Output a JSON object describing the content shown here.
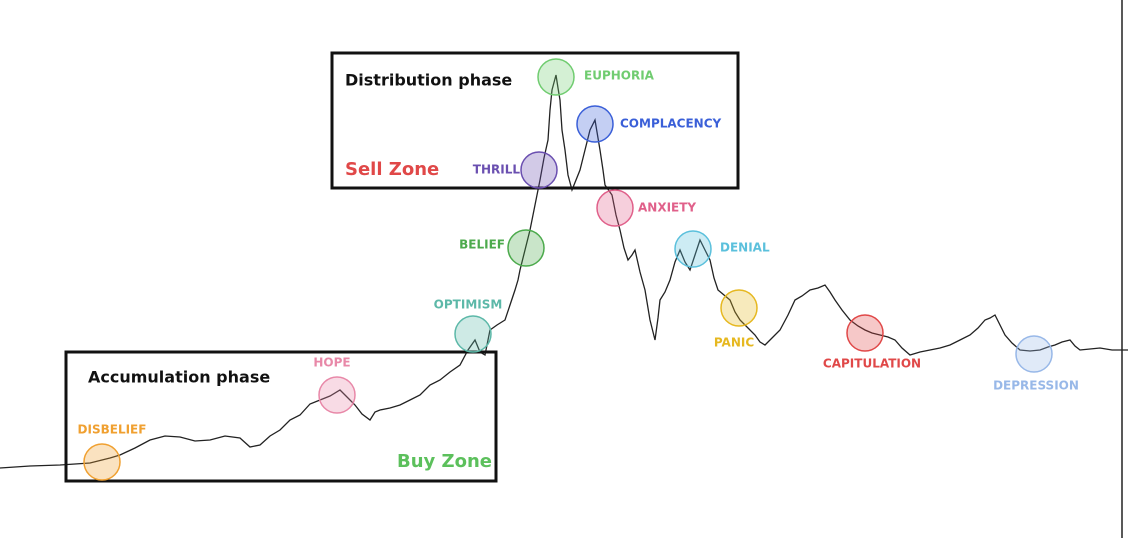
{
  "boxes": [
    {
      "title": "Distribution phase",
      "zone": "Sell Zone"
    },
    {
      "title": "Accumulation phase",
      "zone": "Buy Zone"
    }
  ],
  "stages": [
    {
      "label": "DISBELIEF"
    },
    {
      "label": "HOPE"
    },
    {
      "label": "OPTIMISM"
    },
    {
      "label": "BELIEF"
    },
    {
      "label": "THRILL"
    },
    {
      "label": "EUPHORIA"
    },
    {
      "label": "COMPLACENCY"
    },
    {
      "label": "ANXIETY"
    },
    {
      "label": "DENIAL"
    },
    {
      "label": "PANIC"
    },
    {
      "label": "CAPITULATION"
    },
    {
      "label": "DEPRESSION"
    }
  ]
}
